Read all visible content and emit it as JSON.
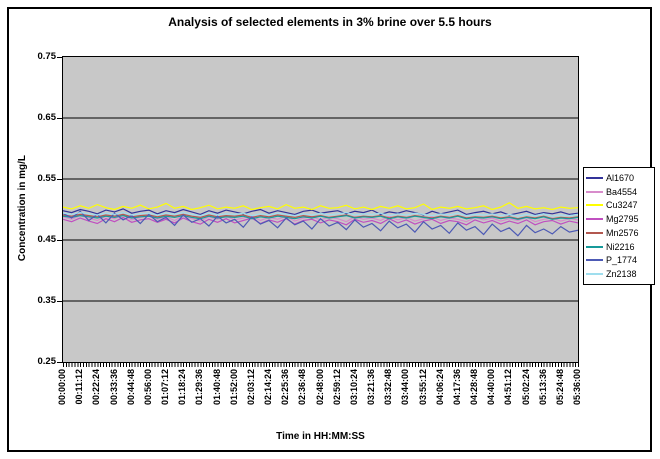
{
  "chart_data": {
    "type": "line",
    "title": "Analysis of selected elements in 3% brine over 5.5 hours",
    "xlabel": "Time in HH:MM:SS",
    "ylabel": "Concentration in mg/L",
    "ylim": [
      0.25,
      0.75
    ],
    "y_ticks": [
      "0.75",
      "0.65",
      "0.55",
      "0.45",
      "0.35",
      "0.25"
    ],
    "grid": true,
    "plot_bg": "#C8C8C8",
    "grid_color": "#000000",
    "legend_position": "right",
    "x_labels": [
      "00:00:00",
      "00:11:12",
      "00:22:24",
      "00:33:36",
      "00:44:48",
      "00:56:00",
      "01:07:12",
      "01:18:24",
      "01:29:36",
      "01:40:48",
      "01:52:00",
      "02:03:12",
      "02:14:24",
      "02:25:36",
      "02:36:48",
      "02:48:00",
      "02:59:12",
      "03:10:24",
      "03:21:36",
      "03:32:48",
      "03:44:00",
      "03:55:12",
      "04:06:24",
      "04:17:36",
      "04:28:48",
      "04:40:00",
      "04:51:12",
      "05:02:24",
      "05:13:36",
      "05:24:48",
      "05:36:00"
    ],
    "series": [
      {
        "name": "Al1670",
        "color": "#333399",
        "values": [
          0.498,
          0.495,
          0.5,
          0.497,
          0.493,
          0.499,
          0.496,
          0.501,
          0.494,
          0.497,
          0.499,
          0.493,
          0.498,
          0.495,
          0.5,
          0.496,
          0.492,
          0.498,
          0.494,
          0.499,
          0.496,
          0.493,
          0.497,
          0.5,
          0.494,
          0.498,
          0.495,
          0.492,
          0.497,
          0.499,
          0.494,
          0.496,
          0.498,
          0.493,
          0.497,
          0.495,
          0.499,
          0.492,
          0.496,
          0.494,
          0.498,
          0.495,
          0.491,
          0.497,
          0.493,
          0.496,
          0.499,
          0.492,
          0.495,
          0.497,
          0.493,
          0.496,
          0.491,
          0.494,
          0.497,
          0.492,
          0.495,
          0.493,
          0.496,
          0.492,
          0.494
        ]
      },
      {
        "name": "Ba4554",
        "color": "#D88CCB",
        "values": [
          0.488,
          0.484,
          0.49,
          0.486,
          0.482,
          0.489,
          0.485,
          0.491,
          0.483,
          0.487,
          0.489,
          0.484,
          0.488,
          0.482,
          0.49,
          0.485,
          0.481,
          0.488,
          0.484,
          0.489,
          0.483,
          0.486,
          0.49,
          0.482,
          0.487,
          0.484,
          0.489,
          0.481,
          0.486,
          0.488,
          0.483,
          0.487,
          0.485,
          0.48,
          0.488,
          0.484,
          0.486,
          0.482,
          0.489,
          0.483,
          0.487,
          0.481,
          0.485,
          0.488,
          0.482,
          0.486,
          0.484,
          0.48,
          0.487,
          0.483,
          0.486,
          0.481,
          0.485,
          0.482,
          0.487,
          0.48,
          0.484,
          0.486,
          0.481,
          0.485,
          0.483
        ]
      },
      {
        "name": "Cu3247",
        "color": "#FFFF00",
        "values": [
          0.504,
          0.501,
          0.506,
          0.502,
          0.508,
          0.503,
          0.5,
          0.505,
          0.502,
          0.507,
          0.501,
          0.504,
          0.51,
          0.502,
          0.505,
          0.5,
          0.503,
          0.507,
          0.501,
          0.504,
          0.502,
          0.506,
          0.5,
          0.503,
          0.505,
          0.501,
          0.508,
          0.502,
          0.504,
          0.5,
          0.506,
          0.502,
          0.503,
          0.507,
          0.501,
          0.504,
          0.5,
          0.505,
          0.502,
          0.506,
          0.501,
          0.503,
          0.509,
          0.5,
          0.504,
          0.502,
          0.505,
          0.501,
          0.503,
          0.506,
          0.5,
          0.504,
          0.511,
          0.502,
          0.505,
          0.501,
          0.503,
          0.5,
          0.504,
          0.502,
          0.503
        ]
      },
      {
        "name": "Mg2795",
        "color": "#C050C0",
        "values": [
          0.484,
          0.48,
          0.486,
          0.481,
          0.477,
          0.485,
          0.48,
          0.487,
          0.479,
          0.483,
          0.485,
          0.479,
          0.484,
          0.478,
          0.486,
          0.48,
          0.476,
          0.484,
          0.479,
          0.485,
          0.478,
          0.482,
          0.486,
          0.477,
          0.483,
          0.479,
          0.485,
          0.476,
          0.482,
          0.484,
          0.478,
          0.483,
          0.48,
          0.475,
          0.484,
          0.479,
          0.482,
          0.477,
          0.485,
          0.478,
          0.483,
          0.476,
          0.481,
          0.484,
          0.477,
          0.482,
          0.48,
          0.475,
          0.483,
          0.478,
          0.482,
          0.476,
          0.481,
          0.477,
          0.483,
          0.475,
          0.48,
          0.482,
          0.476,
          0.481,
          0.478
        ]
      },
      {
        "name": "Mn2576",
        "color": "#B2574F",
        "values": [
          0.491,
          0.489,
          0.492,
          0.49,
          0.488,
          0.491,
          0.489,
          0.492,
          0.488,
          0.49,
          0.491,
          0.488,
          0.491,
          0.489,
          0.492,
          0.489,
          0.487,
          0.491,
          0.488,
          0.49,
          0.489,
          0.491,
          0.487,
          0.49,
          0.488,
          0.491,
          0.489,
          0.487,
          0.49,
          0.488,
          0.49,
          0.487,
          0.489,
          0.491,
          0.487,
          0.489,
          0.488,
          0.49,
          0.486,
          0.489,
          0.487,
          0.49,
          0.488,
          0.486,
          0.489,
          0.487,
          0.49,
          0.486,
          0.488,
          0.487,
          0.489,
          0.486,
          0.488,
          0.485,
          0.488,
          0.486,
          0.489,
          0.485,
          0.487,
          0.486,
          0.488
        ]
      },
      {
        "name": "Ni2216",
        "color": "#169A9A",
        "values": [
          0.489,
          0.487,
          0.49,
          0.488,
          0.486,
          0.489,
          0.487,
          0.49,
          0.486,
          0.488,
          0.489,
          0.486,
          0.489,
          0.487,
          0.49,
          0.487,
          0.485,
          0.489,
          0.486,
          0.488,
          0.487,
          0.489,
          0.485,
          0.488,
          0.486,
          0.489,
          0.487,
          0.485,
          0.488,
          0.486,
          0.489,
          0.486,
          0.488,
          0.49,
          0.486,
          0.488,
          0.487,
          0.489,
          0.485,
          0.488,
          0.486,
          0.489,
          0.487,
          0.485,
          0.488,
          0.486,
          0.489,
          0.485,
          0.487,
          0.486,
          0.488,
          0.485,
          0.487,
          0.484,
          0.487,
          0.485,
          0.488,
          0.484,
          0.486,
          0.485,
          0.487
        ]
      },
      {
        "name": "P_1774",
        "color": "#4D5AB5",
        "values": [
          0.494,
          0.486,
          0.497,
          0.482,
          0.492,
          0.478,
          0.494,
          0.483,
          0.49,
          0.477,
          0.492,
          0.48,
          0.487,
          0.474,
          0.491,
          0.479,
          0.485,
          0.473,
          0.489,
          0.478,
          0.484,
          0.471,
          0.488,
          0.476,
          0.482,
          0.47,
          0.486,
          0.475,
          0.481,
          0.468,
          0.485,
          0.473,
          0.479,
          0.467,
          0.483,
          0.471,
          0.477,
          0.465,
          0.481,
          0.47,
          0.476,
          0.463,
          0.48,
          0.468,
          0.474,
          0.461,
          0.478,
          0.466,
          0.472,
          0.459,
          0.476,
          0.464,
          0.47,
          0.457,
          0.474,
          0.462,
          0.468,
          0.46,
          0.472,
          0.463,
          0.466
        ]
      },
      {
        "name": "Zn2138",
        "color": "#9FDEEE",
        "values": [
          0.494,
          0.492,
          0.495,
          0.493,
          0.491,
          0.494,
          0.492,
          0.495,
          0.491,
          0.493,
          0.494,
          0.491,
          0.494,
          0.492,
          0.495,
          0.492,
          0.49,
          0.494,
          0.491,
          0.493,
          0.492,
          0.494,
          0.49,
          0.493,
          0.491,
          0.494,
          0.492,
          0.49,
          0.493,
          0.491,
          0.494,
          0.491,
          0.493,
          0.495,
          0.491,
          0.493,
          0.492,
          0.494,
          0.49,
          0.493,
          0.491,
          0.494,
          0.492,
          0.49,
          0.493,
          0.491,
          0.494,
          0.49,
          0.492,
          0.491,
          0.493,
          0.49,
          0.492,
          0.489,
          0.492,
          0.49,
          0.493,
          0.489,
          0.491,
          0.49,
          0.492
        ]
      }
    ]
  }
}
